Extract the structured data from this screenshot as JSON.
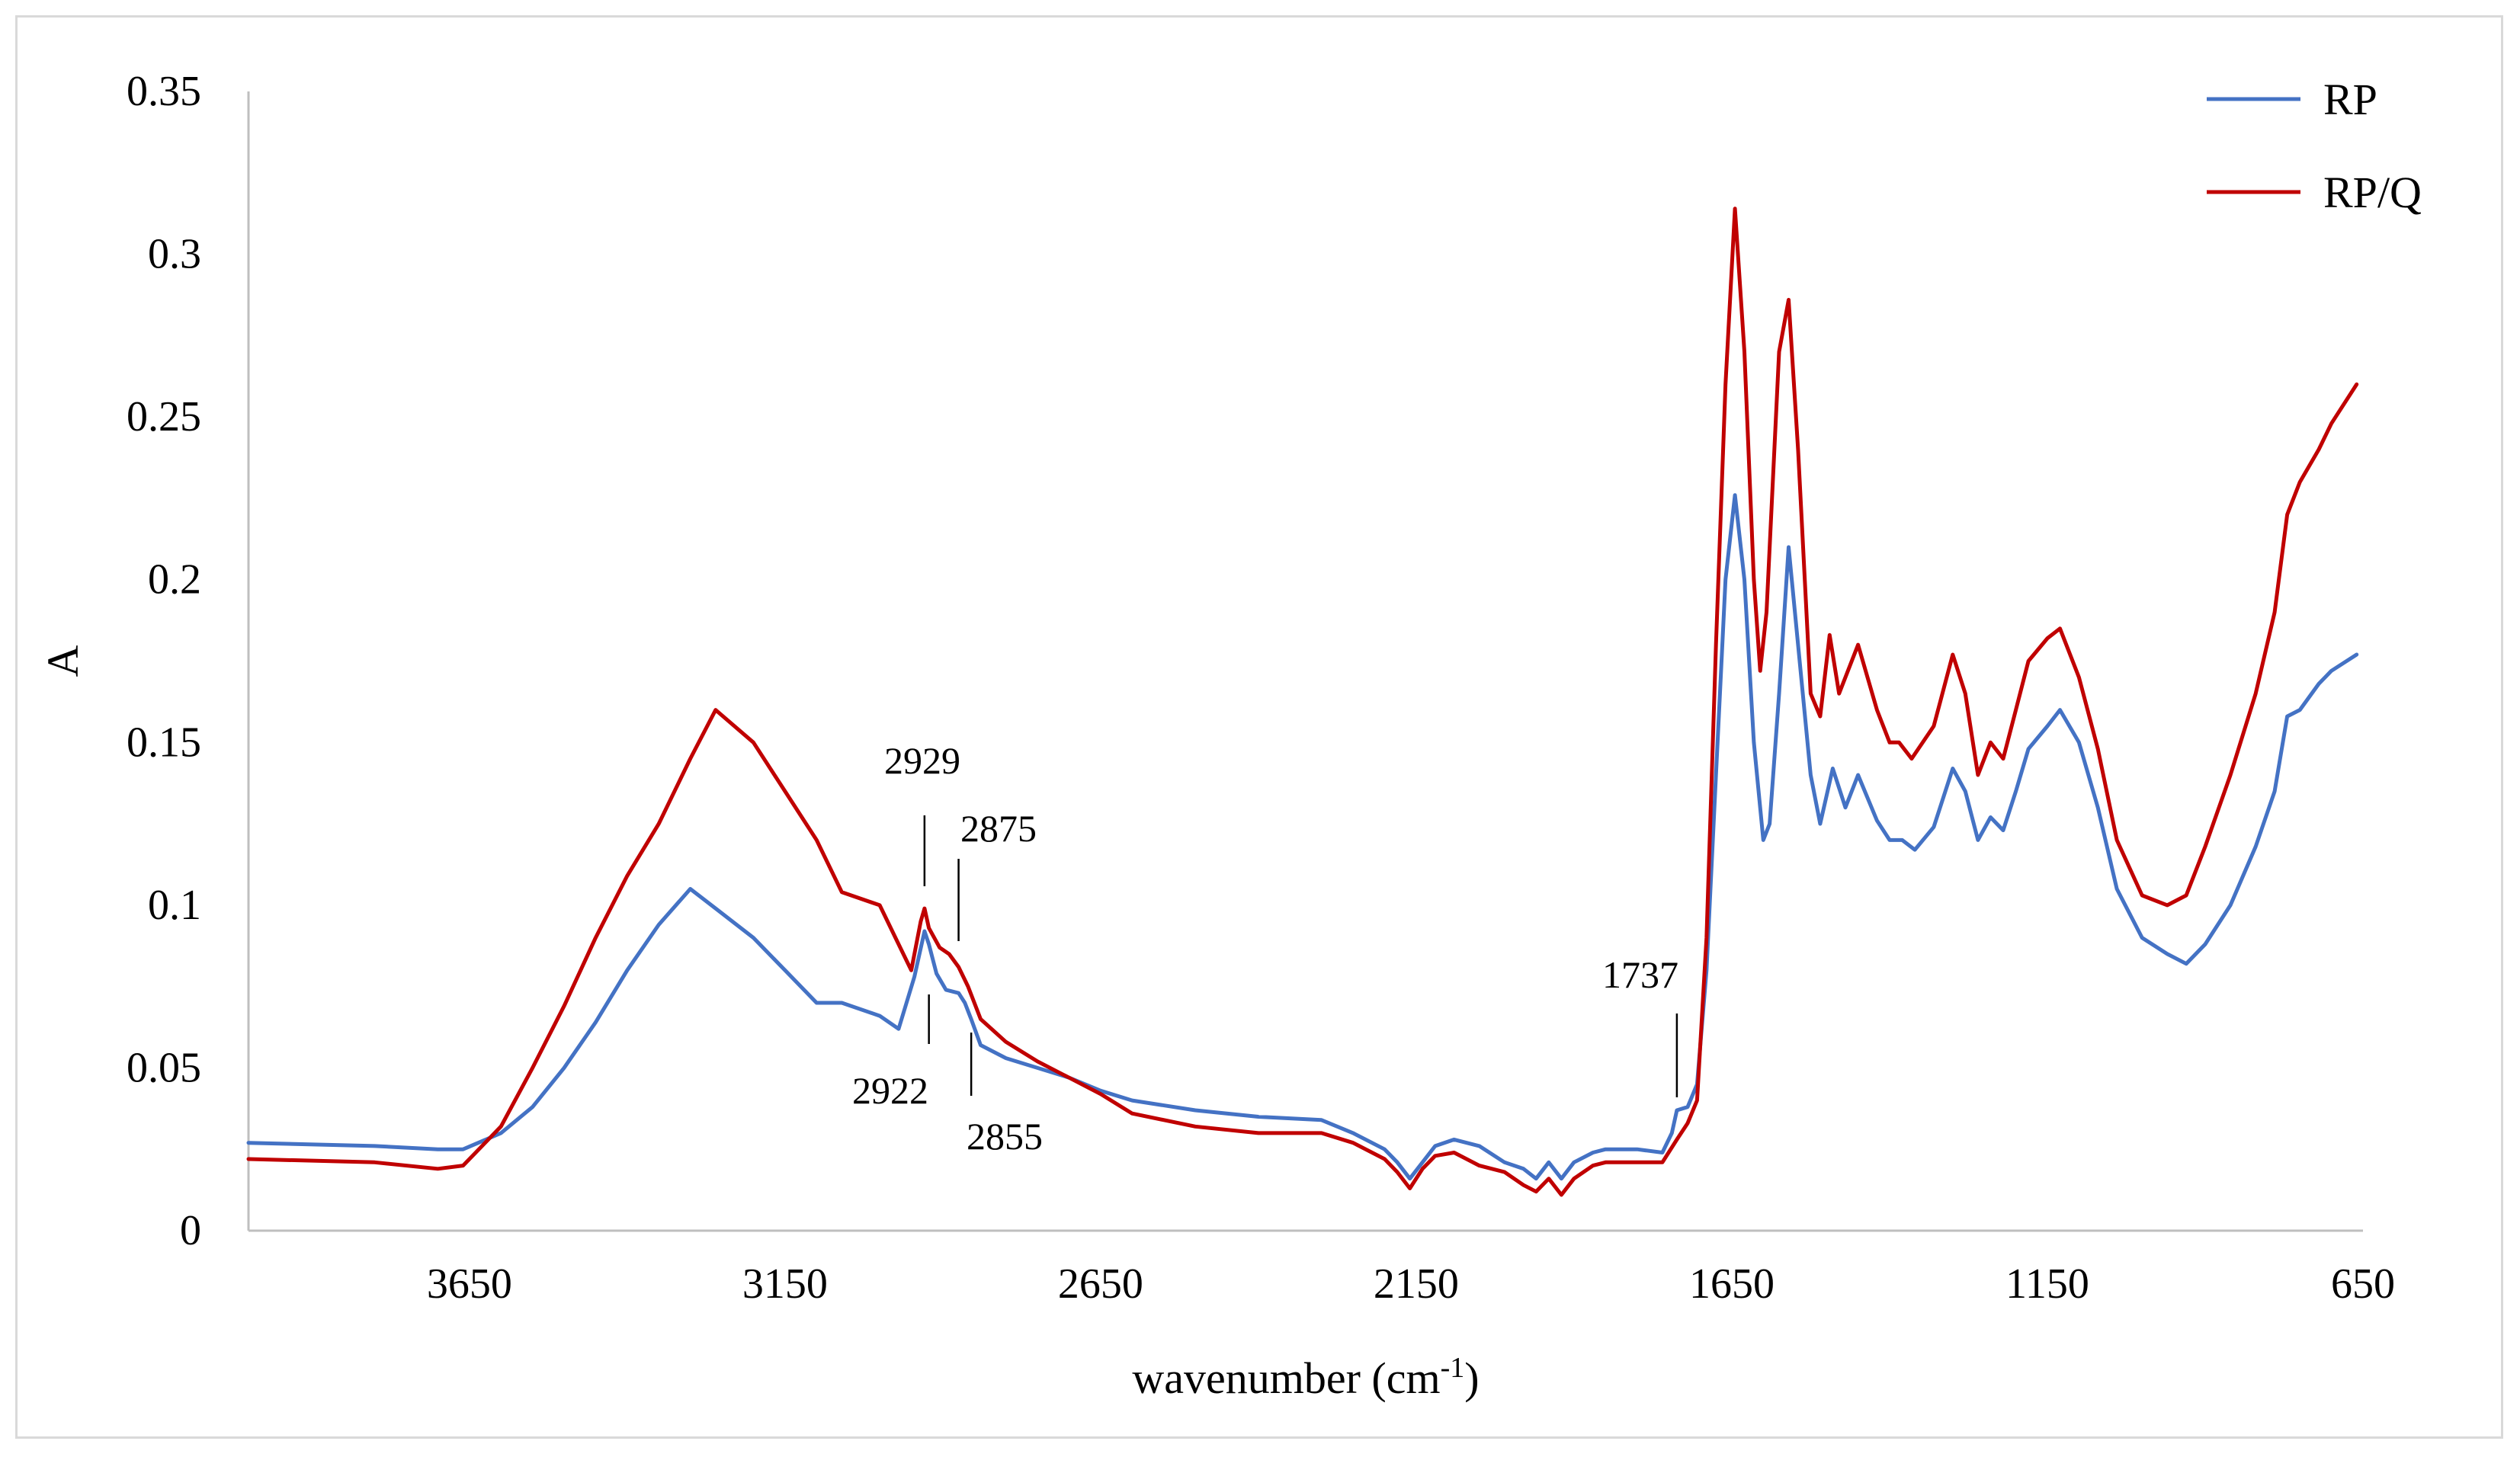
{
  "chart_data": {
    "type": "line",
    "xlabel": "wavenumber (cm",
    "xlabel_sup": "-1",
    "xlabel_suffix": ")",
    "ylabel": "A",
    "xlim": [
      4000,
      650
    ],
    "x_reversed": true,
    "ylim": [
      0,
      0.35
    ],
    "x_ticks": [
      3650,
      3150,
      2650,
      2150,
      1650,
      1150,
      650
    ],
    "x_tick_labels": [
      "3650",
      "3150",
      "2650",
      "2150",
      "1650",
      "1150",
      "650"
    ],
    "y_ticks": [
      0,
      0.05,
      0.1,
      0.15,
      0.2,
      0.25,
      0.3,
      0.35
    ],
    "y_tick_labels": [
      "0",
      "0.05",
      "0.1",
      "0.15",
      "0.2",
      "0.25",
      "0.3",
      "0.35"
    ],
    "grid": false,
    "legend_position": "top-right",
    "series": [
      {
        "name": "RP",
        "color": "#4472C4",
        "points": [
          [
            4000,
            0.027
          ],
          [
            3800,
            0.026
          ],
          [
            3700,
            0.025
          ],
          [
            3660,
            0.025
          ],
          [
            3600,
            0.03
          ],
          [
            3550,
            0.038
          ],
          [
            3500,
            0.05
          ],
          [
            3450,
            0.064
          ],
          [
            3400,
            0.08
          ],
          [
            3350,
            0.094
          ],
          [
            3300,
            0.105
          ],
          [
            3260,
            0.099
          ],
          [
            3200,
            0.09
          ],
          [
            3150,
            0.08
          ],
          [
            3100,
            0.07
          ],
          [
            3060,
            0.07
          ],
          [
            3000,
            0.066
          ],
          [
            2970,
            0.062
          ],
          [
            2945,
            0.078
          ],
          [
            2929,
            0.092
          ],
          [
            2922,
            0.088
          ],
          [
            2910,
            0.079
          ],
          [
            2895,
            0.074
          ],
          [
            2875,
            0.073
          ],
          [
            2865,
            0.07
          ],
          [
            2855,
            0.065
          ],
          [
            2840,
            0.057
          ],
          [
            2800,
            0.053
          ],
          [
            2750,
            0.05
          ],
          [
            2700,
            0.047
          ],
          [
            2650,
            0.043
          ],
          [
            2600,
            0.04
          ],
          [
            2500,
            0.037
          ],
          [
            2400,
            0.035
          ],
          [
            2300,
            0.034
          ],
          [
            2250,
            0.03
          ],
          [
            2200,
            0.025
          ],
          [
            2180,
            0.021
          ],
          [
            2160,
            0.016
          ],
          [
            2140,
            0.021
          ],
          [
            2120,
            0.026
          ],
          [
            2090,
            0.028
          ],
          [
            2050,
            0.026
          ],
          [
            2010,
            0.021
          ],
          [
            1980,
            0.019
          ],
          [
            1960,
            0.016
          ],
          [
            1940,
            0.021
          ],
          [
            1920,
            0.016
          ],
          [
            1900,
            0.021
          ],
          [
            1870,
            0.024
          ],
          [
            1850,
            0.025
          ],
          [
            1800,
            0.025
          ],
          [
            1760,
            0.024
          ],
          [
            1745,
            0.03
          ],
          [
            1737,
            0.037
          ],
          [
            1720,
            0.038
          ],
          [
            1705,
            0.045
          ],
          [
            1690,
            0.08
          ],
          [
            1675,
            0.14
          ],
          [
            1660,
            0.2
          ],
          [
            1645,
            0.226
          ],
          [
            1630,
            0.2
          ],
          [
            1615,
            0.15
          ],
          [
            1600,
            0.12
          ],
          [
            1590,
            0.125
          ],
          [
            1575,
            0.165
          ],
          [
            1560,
            0.21
          ],
          [
            1545,
            0.18
          ],
          [
            1525,
            0.14
          ],
          [
            1510,
            0.125
          ],
          [
            1490,
            0.142
          ],
          [
            1470,
            0.13
          ],
          [
            1450,
            0.14
          ],
          [
            1420,
            0.126
          ],
          [
            1400,
            0.12
          ],
          [
            1380,
            0.12
          ],
          [
            1360,
            0.117
          ],
          [
            1330,
            0.124
          ],
          [
            1300,
            0.142
          ],
          [
            1280,
            0.135
          ],
          [
            1260,
            0.12
          ],
          [
            1240,
            0.127
          ],
          [
            1220,
            0.123
          ],
          [
            1200,
            0.135
          ],
          [
            1180,
            0.148
          ],
          [
            1150,
            0.155
          ],
          [
            1130,
            0.16
          ],
          [
            1100,
            0.15
          ],
          [
            1070,
            0.13
          ],
          [
            1040,
            0.105
          ],
          [
            1000,
            0.09
          ],
          [
            960,
            0.085
          ],
          [
            930,
            0.082
          ],
          [
            900,
            0.088
          ],
          [
            860,
            0.1
          ],
          [
            820,
            0.118
          ],
          [
            790,
            0.135
          ],
          [
            770,
            0.158
          ],
          [
            750,
            0.16
          ],
          [
            720,
            0.168
          ],
          [
            700,
            0.172
          ],
          [
            660,
            0.177
          ]
        ]
      },
      {
        "name": "RP/Q",
        "color": "#C00000",
        "points": [
          [
            4000,
            0.022
          ],
          [
            3800,
            0.021
          ],
          [
            3700,
            0.019
          ],
          [
            3660,
            0.02
          ],
          [
            3600,
            0.032
          ],
          [
            3550,
            0.05
          ],
          [
            3500,
            0.069
          ],
          [
            3450,
            0.09
          ],
          [
            3400,
            0.109
          ],
          [
            3350,
            0.125
          ],
          [
            3300,
            0.145
          ],
          [
            3260,
            0.16
          ],
          [
            3200,
            0.15
          ],
          [
            3150,
            0.135
          ],
          [
            3100,
            0.12
          ],
          [
            3060,
            0.104
          ],
          [
            3000,
            0.1
          ],
          [
            2970,
            0.088
          ],
          [
            2950,
            0.08
          ],
          [
            2935,
            0.095
          ],
          [
            2929,
            0.099
          ],
          [
            2922,
            0.093
          ],
          [
            2905,
            0.087
          ],
          [
            2890,
            0.085
          ],
          [
            2875,
            0.081
          ],
          [
            2860,
            0.075
          ],
          [
            2840,
            0.065
          ],
          [
            2800,
            0.058
          ],
          [
            2750,
            0.052
          ],
          [
            2700,
            0.047
          ],
          [
            2650,
            0.042
          ],
          [
            2600,
            0.036
          ],
          [
            2500,
            0.032
          ],
          [
            2400,
            0.03
          ],
          [
            2300,
            0.03
          ],
          [
            2250,
            0.027
          ],
          [
            2200,
            0.022
          ],
          [
            2180,
            0.018
          ],
          [
            2160,
            0.013
          ],
          [
            2140,
            0.019
          ],
          [
            2120,
            0.023
          ],
          [
            2090,
            0.024
          ],
          [
            2050,
            0.02
          ],
          [
            2010,
            0.018
          ],
          [
            1980,
            0.014
          ],
          [
            1960,
            0.012
          ],
          [
            1940,
            0.016
          ],
          [
            1920,
            0.011
          ],
          [
            1900,
            0.016
          ],
          [
            1870,
            0.02
          ],
          [
            1850,
            0.021
          ],
          [
            1800,
            0.021
          ],
          [
            1760,
            0.021
          ],
          [
            1737,
            0.028
          ],
          [
            1720,
            0.033
          ],
          [
            1705,
            0.04
          ],
          [
            1690,
            0.09
          ],
          [
            1675,
            0.18
          ],
          [
            1660,
            0.26
          ],
          [
            1645,
            0.314
          ],
          [
            1630,
            0.27
          ],
          [
            1615,
            0.2
          ],
          [
            1605,
            0.172
          ],
          [
            1595,
            0.19
          ],
          [
            1575,
            0.27
          ],
          [
            1560,
            0.286
          ],
          [
            1545,
            0.24
          ],
          [
            1525,
            0.165
          ],
          [
            1510,
            0.158
          ],
          [
            1495,
            0.183
          ],
          [
            1480,
            0.165
          ],
          [
            1450,
            0.18
          ],
          [
            1420,
            0.16
          ],
          [
            1400,
            0.15
          ],
          [
            1385,
            0.15
          ],
          [
            1365,
            0.145
          ],
          [
            1330,
            0.155
          ],
          [
            1300,
            0.177
          ],
          [
            1280,
            0.165
          ],
          [
            1260,
            0.14
          ],
          [
            1240,
            0.15
          ],
          [
            1220,
            0.145
          ],
          [
            1200,
            0.16
          ],
          [
            1180,
            0.175
          ],
          [
            1150,
            0.182
          ],
          [
            1130,
            0.185
          ],
          [
            1100,
            0.17
          ],
          [
            1070,
            0.148
          ],
          [
            1040,
            0.12
          ],
          [
            1000,
            0.103
          ],
          [
            960,
            0.1
          ],
          [
            930,
            0.103
          ],
          [
            900,
            0.118
          ],
          [
            860,
            0.14
          ],
          [
            820,
            0.165
          ],
          [
            790,
            0.19
          ],
          [
            770,
            0.22
          ],
          [
            750,
            0.23
          ],
          [
            720,
            0.24
          ],
          [
            700,
            0.248
          ],
          [
            660,
            0.26
          ]
        ]
      }
    ],
    "annotations": [
      {
        "label": "2929",
        "x": 2929,
        "placement": "above"
      },
      {
        "label": "2875",
        "x": 2875,
        "placement": "above"
      },
      {
        "label": "2922",
        "x": 2922,
        "placement": "below"
      },
      {
        "label": "2855",
        "x": 2855,
        "placement": "below"
      },
      {
        "label": "1737",
        "x": 1737,
        "placement": "above"
      }
    ]
  }
}
